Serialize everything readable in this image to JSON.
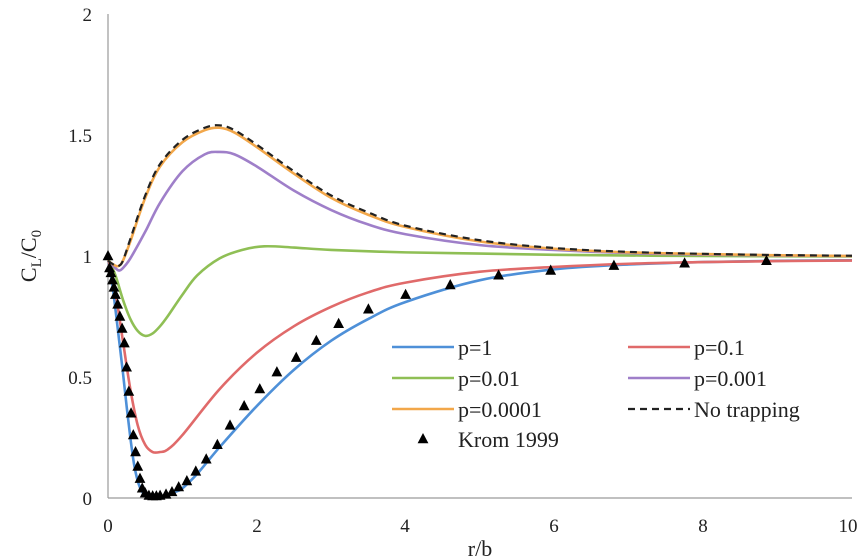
{
  "chart_data": {
    "type": "line",
    "xlabel": "r/b",
    "ylabel": "C_L/C_0",
    "xlim": [
      0,
      10
    ],
    "ylim": [
      0,
      2
    ],
    "xticks": [
      "0",
      "2",
      "4",
      "6",
      "8",
      "10"
    ],
    "yticks": [
      "0",
      "0.5",
      "1",
      "1.5",
      "2"
    ],
    "grid": false,
    "legend_position": "center-right",
    "series": [
      {
        "name": "p=1",
        "kind": "line",
        "color": "#4e90d8",
        "dash": "",
        "x": [
          0,
          0.05,
          0.1,
          0.15,
          0.2,
          0.25,
          0.3,
          0.35,
          0.4,
          0.45,
          0.5,
          0.55,
          0.6,
          0.7,
          0.8,
          0.9,
          1.0,
          1.2,
          1.5,
          2.0,
          2.5,
          3.0,
          3.5,
          4.0,
          5.0,
          6.0,
          7.0,
          8.0,
          9.0,
          10.0
        ],
        "y": [
          0.99,
          0.9,
          0.78,
          0.65,
          0.52,
          0.38,
          0.25,
          0.14,
          0.07,
          0.03,
          0.012,
          0.005,
          0.004,
          0.006,
          0.012,
          0.025,
          0.04,
          0.1,
          0.21,
          0.38,
          0.53,
          0.65,
          0.74,
          0.81,
          0.9,
          0.945,
          0.965,
          0.975,
          0.98,
          0.982
        ]
      },
      {
        "name": "p=0.1",
        "kind": "line",
        "color": "#e06a6a",
        "dash": "",
        "x": [
          0,
          0.1,
          0.2,
          0.3,
          0.4,
          0.5,
          0.6,
          0.7,
          0.8,
          1.0,
          1.5,
          2.0,
          2.5,
          3.0,
          3.5,
          4.0,
          5.0,
          6.0,
          7.0,
          8.0,
          9.0,
          10.0
        ],
        "y": [
          0.99,
          0.85,
          0.65,
          0.45,
          0.3,
          0.22,
          0.19,
          0.19,
          0.2,
          0.26,
          0.45,
          0.6,
          0.71,
          0.79,
          0.85,
          0.89,
          0.935,
          0.955,
          0.968,
          0.975,
          0.979,
          0.981
        ]
      },
      {
        "name": "p=0.01",
        "kind": "line",
        "color": "#8fbf55",
        "dash": "",
        "x": [
          0,
          0.1,
          0.2,
          0.3,
          0.4,
          0.5,
          0.6,
          0.7,
          0.8,
          1.0,
          1.2,
          1.5,
          1.8,
          2.1,
          2.5,
          3.0,
          4.0,
          5.0,
          6.0,
          8.0,
          10.0
        ],
        "y": [
          0.99,
          0.92,
          0.82,
          0.74,
          0.69,
          0.67,
          0.68,
          0.71,
          0.75,
          0.84,
          0.92,
          0.99,
          1.025,
          1.04,
          1.035,
          1.025,
          1.015,
          1.01,
          1.005,
          1.0,
          0.998
        ]
      },
      {
        "name": "p=0.001",
        "kind": "line",
        "color": "#9f7fc9",
        "dash": "",
        "x": [
          0,
          0.1,
          0.15,
          0.2,
          0.3,
          0.5,
          0.7,
          1.0,
          1.3,
          1.5,
          1.7,
          2.0,
          2.5,
          3.0,
          3.5,
          4.0,
          5.0,
          6.0,
          7.0,
          8.0,
          9.0,
          10.0
        ],
        "y": [
          0.98,
          0.95,
          0.94,
          0.95,
          0.99,
          1.1,
          1.22,
          1.35,
          1.42,
          1.43,
          1.42,
          1.37,
          1.27,
          1.19,
          1.13,
          1.09,
          1.045,
          1.025,
          1.012,
          1.006,
          1.002,
          1.0
        ]
      },
      {
        "name": "p=0.0001",
        "kind": "line",
        "color": "#f2a74a",
        "dash": "",
        "x": [
          0,
          0.1,
          0.15,
          0.2,
          0.3,
          0.5,
          0.7,
          1.0,
          1.3,
          1.5,
          1.7,
          2.0,
          2.5,
          3.0,
          3.5,
          4.0,
          5.0,
          6.0,
          7.0,
          8.0,
          9.0,
          10.0
        ],
        "y": [
          0.98,
          0.96,
          0.96,
          0.98,
          1.06,
          1.24,
          1.37,
          1.47,
          1.52,
          1.53,
          1.51,
          1.45,
          1.34,
          1.24,
          1.17,
          1.12,
          1.06,
          1.03,
          1.015,
          1.008,
          1.003,
          1.0
        ]
      },
      {
        "name": "No trapping",
        "kind": "line",
        "color": "#222222",
        "dash": "7,5",
        "x": [
          0,
          0.1,
          0.15,
          0.2,
          0.3,
          0.5,
          0.7,
          1.0,
          1.3,
          1.5,
          1.7,
          2.0,
          2.5,
          3.0,
          3.5,
          4.0,
          5.0,
          6.0,
          7.0,
          8.0,
          9.0,
          10.0
        ],
        "y": [
          0.98,
          0.96,
          0.96,
          0.98,
          1.07,
          1.25,
          1.38,
          1.48,
          1.53,
          1.54,
          1.52,
          1.46,
          1.35,
          1.25,
          1.18,
          1.125,
          1.065,
          1.033,
          1.017,
          1.009,
          1.004,
          1.001
        ]
      },
      {
        "name": "Krom 1999",
        "kind": "markers",
        "color": "#000000",
        "marker": "triangle",
        "x": [
          0.0,
          0.02,
          0.04,
          0.06,
          0.08,
          0.1,
          0.13,
          0.16,
          0.19,
          0.22,
          0.25,
          0.28,
          0.31,
          0.34,
          0.37,
          0.4,
          0.43,
          0.46,
          0.5,
          0.55,
          0.6,
          0.65,
          0.7,
          0.78,
          0.86,
          0.95,
          1.06,
          1.18,
          1.32,
          1.47,
          1.64,
          1.83,
          2.04,
          2.27,
          2.53,
          2.8,
          3.1,
          3.5,
          4.0,
          4.6,
          5.25,
          5.95,
          6.8,
          7.75,
          8.85
        ],
        "y": [
          1.0,
          0.95,
          0.93,
          0.9,
          0.87,
          0.84,
          0.8,
          0.75,
          0.7,
          0.64,
          0.54,
          0.44,
          0.35,
          0.26,
          0.19,
          0.13,
          0.08,
          0.04,
          0.02,
          0.01,
          0.008,
          0.008,
          0.01,
          0.015,
          0.025,
          0.045,
          0.07,
          0.11,
          0.16,
          0.22,
          0.3,
          0.38,
          0.45,
          0.52,
          0.58,
          0.65,
          0.72,
          0.78,
          0.84,
          0.88,
          0.92,
          0.94,
          0.96,
          0.97,
          0.98
        ]
      }
    ]
  }
}
